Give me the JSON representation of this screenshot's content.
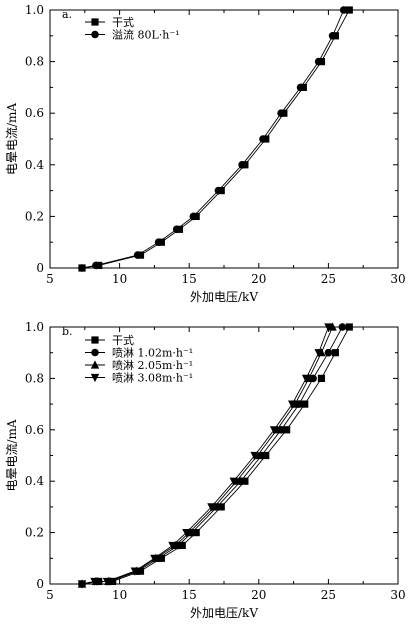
{
  "chart_data": [
    {
      "type": "line",
      "panel_label": "a.",
      "xlabel": "外加电压/kV",
      "ylabel": "电晕电流/mA",
      "xlim": [
        5,
        30
      ],
      "ylim": [
        0,
        1.0
      ],
      "xticks": [
        "5",
        "10",
        "15",
        "20",
        "25",
        "30"
      ],
      "yticks": [
        "0",
        "0.2",
        "0.4",
        "0.6",
        "0.8",
        "1.0"
      ],
      "legend_position": "top-left",
      "series": [
        {
          "name": "干式",
          "marker": "square",
          "x": [
            7.3,
            8.5,
            11.5,
            13.0,
            14.3,
            15.5,
            17.3,
            19.0,
            20.5,
            21.8,
            23.2,
            24.5,
            25.5,
            26.5
          ],
          "y": [
            0.0,
            0.01,
            0.05,
            0.1,
            0.15,
            0.2,
            0.3,
            0.4,
            0.5,
            0.6,
            0.7,
            0.8,
            0.9,
            1.0
          ]
        },
        {
          "name": "溢流 80L·h⁻¹",
          "marker": "circle",
          "x": [
            7.3,
            8.3,
            11.3,
            12.8,
            14.1,
            15.3,
            17.1,
            18.8,
            20.3,
            21.6,
            23.0,
            24.3,
            25.3,
            26.1
          ],
          "y": [
            0.0,
            0.01,
            0.05,
            0.1,
            0.15,
            0.2,
            0.3,
            0.4,
            0.5,
            0.6,
            0.7,
            0.8,
            0.9,
            1.0
          ]
        }
      ]
    },
    {
      "type": "line",
      "panel_label": "b.",
      "xlabel": "外加电压/kV",
      "ylabel": "电晕电流/mA",
      "xlim": [
        5,
        30
      ],
      "ylim": [
        0,
        1.0
      ],
      "xticks": [
        "5",
        "10",
        "15",
        "20",
        "25",
        "30"
      ],
      "yticks": [
        "0",
        "0.2",
        "0.4",
        "0.6",
        "0.8",
        "1.0"
      ],
      "legend_position": "top-left",
      "series": [
        {
          "name": "干式",
          "marker": "square",
          "x": [
            7.3,
            8.5,
            9.5,
            11.5,
            13.0,
            14.5,
            15.5,
            17.3,
            19.0,
            20.5,
            22.0,
            23.3,
            24.5,
            25.5,
            26.5
          ],
          "y": [
            0.0,
            0.01,
            0.01,
            0.05,
            0.1,
            0.15,
            0.2,
            0.3,
            0.4,
            0.5,
            0.6,
            0.7,
            0.8,
            0.9,
            1.0
          ]
        },
        {
          "name": "喷淋 1.02m·h⁻¹",
          "marker": "circle",
          "x": [
            7.3,
            8.4,
            9.3,
            11.3,
            12.8,
            14.2,
            15.2,
            17.0,
            18.7,
            20.2,
            21.6,
            22.9,
            23.9,
            25.0,
            26.0
          ],
          "y": [
            0.0,
            0.01,
            0.01,
            0.05,
            0.1,
            0.15,
            0.2,
            0.3,
            0.4,
            0.5,
            0.6,
            0.7,
            0.8,
            0.9,
            1.0
          ]
        },
        {
          "name": "喷淋 2.05m·h⁻¹",
          "marker": "triangle-up",
          "x": [
            7.3,
            8.3,
            9.2,
            11.2,
            12.6,
            14.0,
            15.0,
            16.8,
            18.4,
            19.9,
            21.3,
            22.6,
            23.6,
            24.5,
            25.3
          ],
          "y": [
            0.0,
            0.01,
            0.01,
            0.05,
            0.1,
            0.15,
            0.2,
            0.3,
            0.4,
            0.5,
            0.6,
            0.7,
            0.8,
            0.9,
            1.0
          ]
        },
        {
          "name": "喷淋 3.08m·h⁻¹",
          "marker": "triangle-down",
          "x": [
            7.3,
            8.2,
            9.1,
            11.1,
            12.5,
            13.8,
            14.8,
            16.6,
            18.2,
            19.7,
            21.1,
            22.4,
            23.4,
            24.3,
            25.0
          ],
          "y": [
            0.0,
            0.01,
            0.01,
            0.05,
            0.1,
            0.15,
            0.2,
            0.3,
            0.4,
            0.5,
            0.6,
            0.7,
            0.8,
            0.9,
            1.0
          ]
        }
      ]
    }
  ]
}
